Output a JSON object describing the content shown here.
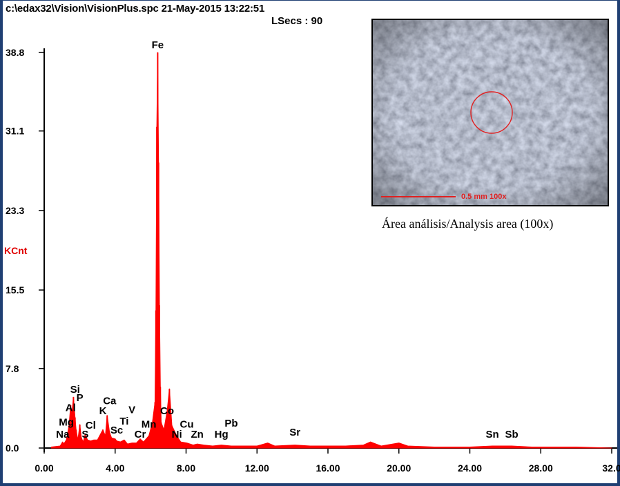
{
  "header": {
    "file_info": "c:\\edax32\\Vision\\VisionPlus.spc  21-May-2015 13:22:51",
    "lsecs": "LSecs :  90"
  },
  "inset": {
    "scale_label": "0.5 mm  100x",
    "caption": "Área análisis/Analysis area (100x)"
  },
  "colors": {
    "spectrum": "#ff0000",
    "frame": "#1f3f73",
    "axis": "#000000",
    "ylabel": "#e00000"
  },
  "chart_data": {
    "type": "line",
    "title": "",
    "xlabel": "",
    "ylabel": "KCnt",
    "xlim": [
      0,
      32
    ],
    "ylim": [
      0,
      38.8
    ],
    "x_ticks": [
      "0.00",
      "4.00",
      "8.00",
      "12.00",
      "16.00",
      "20.00",
      "24.00",
      "28.00",
      "32.0"
    ],
    "x_tick_values": [
      0,
      4,
      8,
      12,
      16,
      20,
      24,
      28,
      32
    ],
    "y_ticks": [
      "0.0",
      "7.8",
      "15.5",
      "23.3",
      "31.1",
      "38.8"
    ],
    "y_tick_values": [
      0,
      7.8,
      15.5,
      23.3,
      31.1,
      38.8
    ],
    "series": [
      {
        "x": [
          0.4,
          0.9,
          1.04,
          1.1,
          1.25,
          1.4,
          1.49,
          1.55,
          1.65,
          1.74,
          1.8,
          1.9,
          2.01,
          2.1,
          2.2,
          2.31,
          2.45,
          2.62,
          2.8,
          3.0,
          3.31,
          3.45,
          3.55,
          3.69,
          3.8,
          4.0,
          4.09,
          4.3,
          4.51,
          4.7,
          4.95,
          5.2,
          5.41,
          5.6,
          5.9,
          6.1,
          6.25,
          6.3,
          6.35,
          6.4,
          6.45,
          6.5,
          6.55,
          6.6,
          6.75,
          6.93,
          7.06,
          7.2,
          7.48,
          7.7,
          8.04,
          8.4,
          8.63,
          9.0,
          9.5,
          9.99,
          10.55,
          11.0,
          12.0,
          12.6,
          13.0,
          14.14,
          15.0,
          16.0,
          17.0,
          18.0,
          18.4,
          18.7,
          19.0,
          20.0,
          20.5,
          22.0,
          24.0,
          25.27,
          26.36,
          27.5,
          28.0,
          30.0,
          32.0
        ],
        "y": [
          0.1,
          0.2,
          0.6,
          0.4,
          0.8,
          2.2,
          4.2,
          3.2,
          5.0,
          3.0,
          1.8,
          0.8,
          2.3,
          1.0,
          0.6,
          1.3,
          0.8,
          0.7,
          0.8,
          0.8,
          1.8,
          1.2,
          3.2,
          1.5,
          1.0,
          0.9,
          0.7,
          0.6,
          0.8,
          0.4,
          0.5,
          0.5,
          0.9,
          0.6,
          1.2,
          2.5,
          4.5,
          13.5,
          31.5,
          38.8,
          28.0,
          14.0,
          6.0,
          2.5,
          1.8,
          3.6,
          5.8,
          2.2,
          1.2,
          0.6,
          0.5,
          0.3,
          0.4,
          0.3,
          0.2,
          0.3,
          0.2,
          0.2,
          0.2,
          0.5,
          0.2,
          0.3,
          0.2,
          0.2,
          0.2,
          0.3,
          0.6,
          0.4,
          0.2,
          0.5,
          0.2,
          0.1,
          0.1,
          0.2,
          0.2,
          0.1,
          0.1,
          0.1,
          0.0
        ]
      }
    ],
    "peak_labels": [
      {
        "label": "Fe",
        "x": 6.4,
        "y": 38.8
      },
      {
        "label": "Si",
        "x": 1.74,
        "y": 5.0
      },
      {
        "label": "P",
        "x": 2.01,
        "y": 4.2
      },
      {
        "label": "Al",
        "x": 1.49,
        "y": 3.2
      },
      {
        "label": "Mg",
        "x": 1.25,
        "y": 1.8
      },
      {
        "label": "Na",
        "x": 1.04,
        "y": 0.6
      },
      {
        "label": "S",
        "x": 2.31,
        "y": 0.6
      },
      {
        "label": "Cl",
        "x": 2.62,
        "y": 1.5
      },
      {
        "label": "K",
        "x": 3.31,
        "y": 2.9
      },
      {
        "label": "Ca",
        "x": 3.69,
        "y": 3.9
      },
      {
        "label": "Sc",
        "x": 4.09,
        "y": 1.0
      },
      {
        "label": "Ti",
        "x": 4.51,
        "y": 1.9
      },
      {
        "label": "V",
        "x": 4.95,
        "y": 3.0
      },
      {
        "label": "Cr",
        "x": 5.41,
        "y": 0.6
      },
      {
        "label": "Mn",
        "x": 5.9,
        "y": 1.6
      },
      {
        "label": "Co",
        "x": 6.93,
        "y": 2.9
      },
      {
        "label": "Ni",
        "x": 7.48,
        "y": 0.6
      },
      {
        "label": "Cu",
        "x": 8.04,
        "y": 1.6
      },
      {
        "label": "Zn",
        "x": 8.63,
        "y": 0.6
      },
      {
        "label": "Hg",
        "x": 9.99,
        "y": 0.6
      },
      {
        "label": "Pb",
        "x": 10.55,
        "y": 1.7
      },
      {
        "label": "Sr",
        "x": 14.14,
        "y": 0.8
      },
      {
        "label": "Sn",
        "x": 25.27,
        "y": 0.6
      },
      {
        "label": "Sb",
        "x": 26.36,
        "y": 0.6
      }
    ]
  }
}
